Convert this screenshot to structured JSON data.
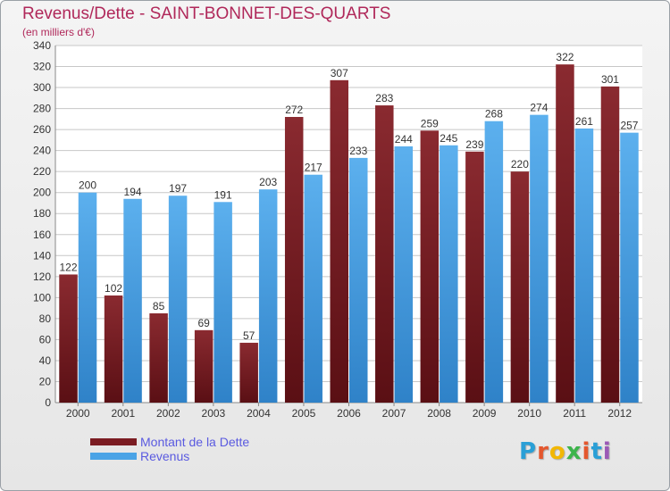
{
  "title": "Revenus/Dette - SAINT-BONNET-DES-QUARTS",
  "subtitle": "(en milliers d'€)",
  "logo": {
    "letters": [
      "P",
      "r",
      "o",
      "x",
      "i",
      "t",
      "i"
    ],
    "colors": [
      "#2a9fd6",
      "#e4572e",
      "#f2b705",
      "#3cb44b",
      "#e4572e",
      "#2a9fd6",
      "#9b59b6"
    ]
  },
  "colors": {
    "dette": "#7b1c22",
    "revenus": "#4aa3e6",
    "grid": "#c7c7c7",
    "text": "#333333",
    "title": "#b0285a",
    "legend_text": "#5a5ae0"
  },
  "legend": {
    "dette_label": "Montant de la Dette",
    "revenus_label": "Revenus"
  },
  "chart_data": {
    "type": "bar",
    "categories": [
      "2000",
      "2001",
      "2002",
      "2003",
      "2004",
      "2005",
      "2006",
      "2007",
      "2008",
      "2009",
      "2010",
      "2011",
      "2012"
    ],
    "series": [
      {
        "name": "Montant de la Dette",
        "values": [
          122,
          102,
          85,
          69,
          57,
          272,
          307,
          283,
          259,
          239,
          220,
          322,
          301
        ]
      },
      {
        "name": "Revenus",
        "values": [
          200,
          194,
          197,
          191,
          203,
          217,
          233,
          244,
          245,
          268,
          274,
          261,
          257
        ]
      }
    ],
    "ylim": [
      0,
      340
    ],
    "ytick_step": 20,
    "yticks": [
      "0",
      "20",
      "40",
      "60",
      "80",
      "100",
      "120",
      "140",
      "160",
      "180",
      "200",
      "220",
      "240",
      "260",
      "280",
      "300",
      "320",
      "340"
    ],
    "grid": true,
    "legend_position": "bottom-left"
  }
}
